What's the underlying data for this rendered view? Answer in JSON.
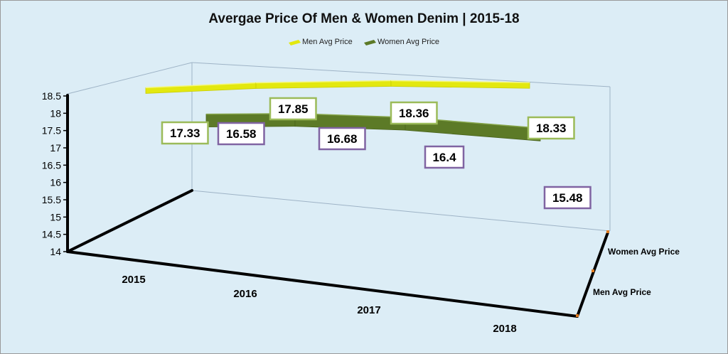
{
  "chart_data": {
    "type": "line",
    "variant": "3d-ribbon",
    "title": "Avergae Price Of Men & Women Denim | 2015-18",
    "categories": [
      "2015",
      "2016",
      "2017",
      "2018"
    ],
    "series": [
      {
        "name": "Men Avg Price",
        "values": [
          17.33,
          17.85,
          18.36,
          18.33
        ],
        "color": "#e3e80f",
        "label_border": "#9bbb59"
      },
      {
        "name": "Women Avg Price",
        "values": [
          16.58,
          16.68,
          16.4,
          15.48
        ],
        "color": "#5c7a27",
        "label_border": "#8064a2"
      }
    ],
    "y_ticks": [
      "14",
      "14.5",
      "15",
      "15.5",
      "16",
      "16.5",
      "17",
      "17.5",
      "18",
      "18.5"
    ],
    "ylim": [
      14,
      18.5
    ],
    "legend_position": "top"
  }
}
